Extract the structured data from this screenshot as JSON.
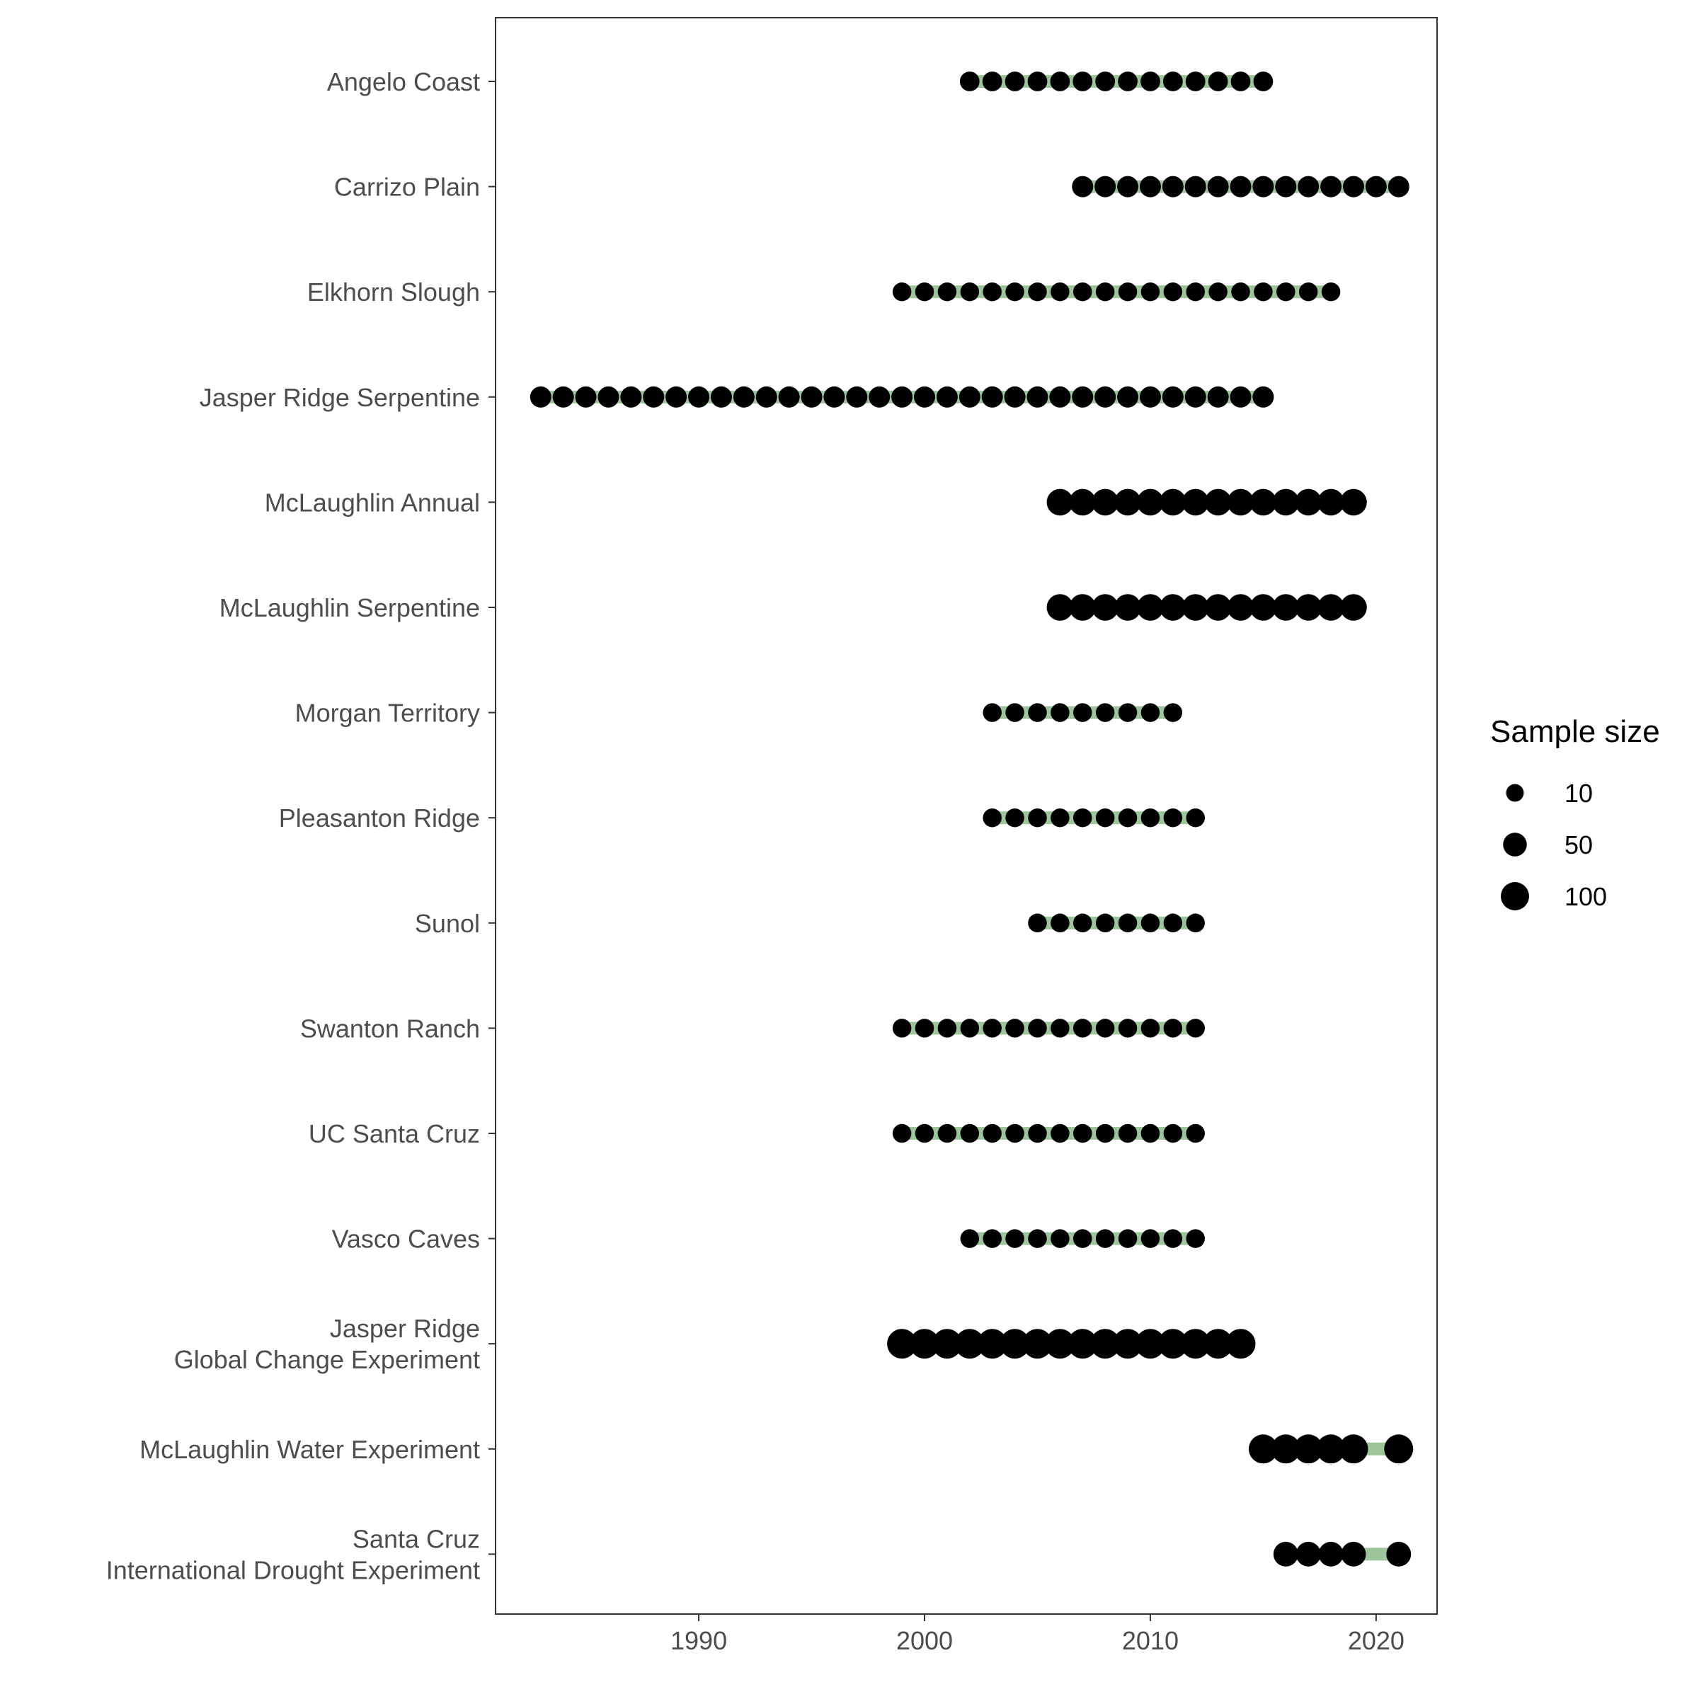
{
  "chart_data": {
    "type": "scatter",
    "title": "",
    "xlabel": "",
    "ylabel": "",
    "xlim": [
      1981,
      2022.7
    ],
    "x_ticks": [
      1990,
      2000,
      2010,
      2020
    ],
    "x_tick_labels": [
      "1990",
      "2000",
      "2010",
      "2020"
    ],
    "grid": false,
    "legend_position": "right",
    "colors": {
      "point": "#000000",
      "range_bar": "#9dc49b",
      "axis_text": "#4d4d4d",
      "panel_border": "#333333"
    },
    "size_legend": {
      "title": "Sample size",
      "items": [
        {
          "label": "10",
          "value": 10
        },
        {
          "label": "50",
          "value": 50
        },
        {
          "label": "100",
          "value": 100
        }
      ]
    },
    "sites": [
      {
        "label": [
          "Angelo Coast"
        ],
        "years": [
          2002,
          2003,
          2004,
          2005,
          2006,
          2007,
          2008,
          2009,
          2010,
          2011,
          2012,
          2013,
          2014,
          2015
        ],
        "sample_size": 20
      },
      {
        "label": [
          "Carrizo Plain"
        ],
        "years": [
          2007,
          2008,
          2009,
          2010,
          2011,
          2012,
          2013,
          2014,
          2015,
          2016,
          2017,
          2018,
          2019,
          2020,
          2021
        ],
        "sample_size": 30
      },
      {
        "label": [
          "Elkhorn Slough"
        ],
        "years": [
          1999,
          2000,
          2001,
          2002,
          2003,
          2004,
          2005,
          2006,
          2007,
          2008,
          2009,
          2010,
          2011,
          2012,
          2013,
          2014,
          2015,
          2016,
          2017,
          2018
        ],
        "sample_size": 15
      },
      {
        "label": [
          "Jasper Ridge Serpentine"
        ],
        "years": [
          1983,
          1984,
          1985,
          1986,
          1987,
          1988,
          1989,
          1990,
          1991,
          1992,
          1993,
          1994,
          1995,
          1996,
          1997,
          1998,
          1999,
          2000,
          2001,
          2002,
          2003,
          2004,
          2005,
          2006,
          2007,
          2008,
          2009,
          2010,
          2011,
          2012,
          2013,
          2014,
          2015
        ],
        "sample_size": 30
      },
      {
        "label": [
          "McLaughlin Annual"
        ],
        "years": [
          2006,
          2007,
          2008,
          2009,
          2010,
          2011,
          2012,
          2013,
          2014,
          2015,
          2016,
          2017,
          2018,
          2019
        ],
        "sample_size": 80
      },
      {
        "label": [
          "McLaughlin Serpentine"
        ],
        "years": [
          2006,
          2007,
          2008,
          2009,
          2010,
          2011,
          2012,
          2013,
          2014,
          2015,
          2016,
          2017,
          2018,
          2019
        ],
        "sample_size": 80
      },
      {
        "label": [
          "Morgan Territory"
        ],
        "years": [
          2003,
          2004,
          2005,
          2006,
          2007,
          2008,
          2009,
          2010,
          2011
        ],
        "sample_size": 15
      },
      {
        "label": [
          "Pleasanton Ridge"
        ],
        "years": [
          2003,
          2004,
          2005,
          2006,
          2007,
          2008,
          2009,
          2010,
          2011,
          2012
        ],
        "sample_size": 15
      },
      {
        "label": [
          "Sunol"
        ],
        "years": [
          2005,
          2006,
          2007,
          2008,
          2009,
          2010,
          2011,
          2012
        ],
        "sample_size": 15
      },
      {
        "label": [
          "Swanton Ranch"
        ],
        "years": [
          1999,
          2000,
          2001,
          2002,
          2003,
          2004,
          2005,
          2006,
          2007,
          2008,
          2009,
          2010,
          2011,
          2012
        ],
        "sample_size": 15
      },
      {
        "label": [
          "UC Santa Cruz"
        ],
        "years": [
          1999,
          2000,
          2001,
          2002,
          2003,
          2004,
          2005,
          2006,
          2007,
          2008,
          2009,
          2010,
          2011,
          2012
        ],
        "sample_size": 15
      },
      {
        "label": [
          "Vasco Caves"
        ],
        "years": [
          2002,
          2003,
          2004,
          2005,
          2006,
          2007,
          2008,
          2009,
          2010,
          2011,
          2012
        ],
        "sample_size": 15
      },
      {
        "label": [
          "Jasper Ridge",
          "Global Change Experiment"
        ],
        "years": [
          1999,
          2000,
          2001,
          2002,
          2003,
          2004,
          2005,
          2006,
          2007,
          2008,
          2009,
          2010,
          2011,
          2012,
          2013,
          2014
        ],
        "sample_size": 120
      },
      {
        "label": [
          "McLaughlin Water Experiment"
        ],
        "years": [
          2015,
          2016,
          2017,
          2018,
          2019,
          2021
        ],
        "sample_size": 110
      },
      {
        "label": [
          "Santa Cruz",
          "International Drought Experiment"
        ],
        "years": [
          2016,
          2017,
          2018,
          2019,
          2021
        ],
        "sample_size": 60
      }
    ]
  }
}
